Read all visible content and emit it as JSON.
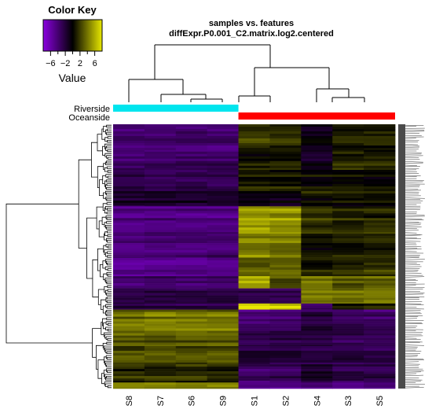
{
  "chart_data": {
    "type": "heatmap",
    "title": "samples vs. features",
    "subtitle": "diffExpr.P0.001_C2.matrix.log2.centered",
    "color_key": {
      "title": "Color Key",
      "label": "Value",
      "ticks": [
        -6,
        -2,
        2,
        6
      ],
      "tick_labels": [
        "−6",
        "−2",
        "2",
        "6"
      ],
      "range": [
        -8,
        8
      ],
      "low_color": "#8a00e0",
      "mid_color": "#000000",
      "high_color": "#e8e800"
    },
    "columns": [
      "S8",
      "S7",
      "S6",
      "S9",
      "S1",
      "S2",
      "S4",
      "S3",
      "S5"
    ],
    "column_groups": [
      {
        "name": "Riverside",
        "color": "#00e5ee",
        "columns": [
          "S8",
          "S7",
          "S6",
          "S9"
        ]
      },
      {
        "name": "Oceanside",
        "color": "#ff0000",
        "columns": [
          "S1",
          "S2",
          "S4",
          "S3",
          "S5"
        ]
      }
    ],
    "row_blocks": [
      {
        "weight": 9,
        "values": [
          -3.0,
          -3.0,
          -3.0,
          -3.0,
          1.5,
          1.2,
          -0.5,
          0.8,
          0.8
        ]
      },
      {
        "weight": 6,
        "values": [
          -2.8,
          -2.6,
          -2.6,
          -2.5,
          0.5,
          0.7,
          -1.0,
          1.2,
          0.9
        ]
      },
      {
        "weight": 7,
        "values": [
          -2.0,
          -2.2,
          -2.0,
          -2.2,
          1.0,
          0.8,
          0.5,
          0.6,
          0.5
        ]
      },
      {
        "weight": 5,
        "values": [
          -1.2,
          -1.0,
          -1.2,
          -1.1,
          -0.5,
          -0.4,
          0.6,
          0.4,
          0.5
        ]
      },
      {
        "weight": 9,
        "values": [
          -3.8,
          -3.6,
          -3.6,
          -3.5,
          4.5,
          4.2,
          1.5,
          1.0,
          1.2
        ]
      },
      {
        "weight": 8,
        "values": [
          -3.5,
          -3.3,
          -3.4,
          -3.2,
          3.5,
          3.2,
          0.5,
          0.5,
          0.8
        ]
      },
      {
        "weight": 6,
        "values": [
          -4.2,
          -4.0,
          -4.0,
          -3.8,
          2.5,
          2.8,
          0.8,
          1.0,
          1.5
        ]
      },
      {
        "weight": 4,
        "values": [
          -3.0,
          -2.8,
          -2.9,
          -2.8,
          5.0,
          2.0,
          3.5,
          2.5,
          3.0
        ]
      },
      {
        "weight": 5,
        "values": [
          -2.2,
          -2.0,
          -2.2,
          -2.0,
          -2.5,
          -2.5,
          3.0,
          2.8,
          3.0
        ]
      },
      {
        "weight": 2,
        "values": [
          -2.0,
          -2.0,
          -2.0,
          -2.0,
          6.0,
          5.5,
          -3.0,
          0.5,
          0.5
        ]
      },
      {
        "weight": 7,
        "values": [
          3.0,
          3.2,
          3.0,
          3.1,
          -3.5,
          -3.2,
          -2.0,
          -2.8,
          -3.0
        ]
      },
      {
        "weight": 5,
        "values": [
          2.5,
          2.2,
          2.4,
          2.5,
          -2.5,
          -2.2,
          -1.8,
          -2.5,
          -2.5
        ]
      },
      {
        "weight": 6,
        "values": [
          2.0,
          2.2,
          2.0,
          2.2,
          -1.5,
          -1.8,
          -2.0,
          -2.0,
          -2.2
        ]
      },
      {
        "weight": 6,
        "values": [
          1.2,
          1.0,
          1.2,
          1.0,
          -2.8,
          -2.5,
          -1.0,
          -2.0,
          -2.2
        ]
      },
      {
        "weight": 2,
        "values": [
          3.5,
          3.5,
          3.5,
          3.5,
          -4.0,
          -4.0,
          -3.5,
          -4.0,
          -4.0
        ]
      }
    ]
  }
}
